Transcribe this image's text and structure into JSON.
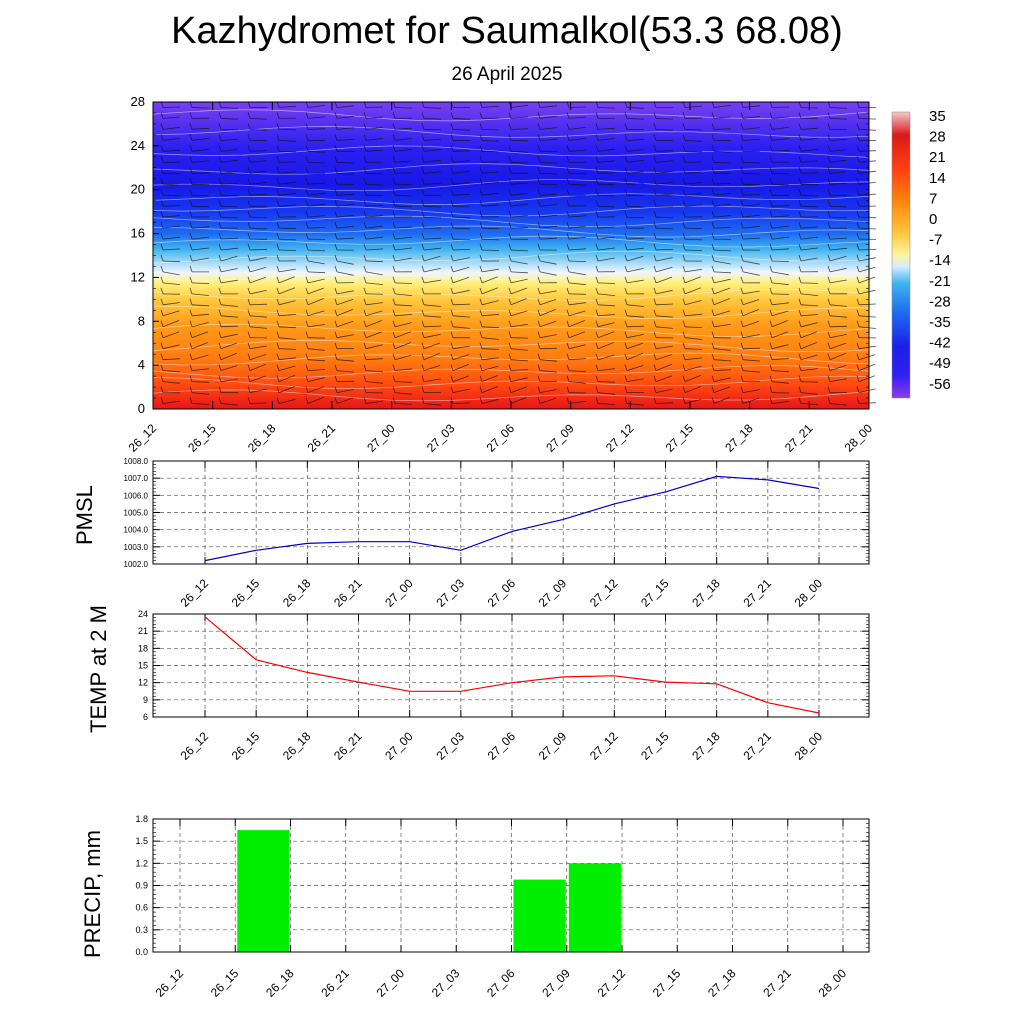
{
  "title": "Kazhydromet for Saumalkol(53.3 68.08)",
  "subtitle": "26 April 2025",
  "time_labels": [
    "26_12",
    "26_15",
    "26_18",
    "26_21",
    "27_00",
    "27_03",
    "27_06",
    "27_09",
    "27_12",
    "27_15",
    "27_18",
    "27_21",
    "28_00"
  ],
  "colors": {
    "pmsl_line": "#0000cc",
    "temp_line": "#ff0000",
    "precip_bar": "#00ee00",
    "grid": "#555555"
  },
  "chart_data": [
    {
      "type": "heatmap",
      "name": "cross-section",
      "x": [
        "26_12",
        "26_15",
        "26_18",
        "26_21",
        "27_00",
        "27_03",
        "27_06",
        "27_09",
        "27_12",
        "27_15",
        "27_18",
        "27_21",
        "28_00"
      ],
      "y_ticks": [
        0,
        4,
        8,
        12,
        16,
        20,
        24,
        28
      ],
      "ylim": [
        0,
        28
      ],
      "colorbar_labels": [
        "35",
        "28",
        "21",
        "14",
        "7",
        "0",
        "-7",
        "-14",
        "-21",
        "-28",
        "-35",
        "-42",
        "-49",
        "-56"
      ],
      "colorbar_range": [
        -63,
        42
      ],
      "temperature_profile": {
        "levels": [
          0,
          4,
          8,
          12,
          16,
          20,
          24,
          28
        ],
        "values": [
          20,
          10,
          0,
          -15,
          -45,
          -58,
          -52,
          -50
        ]
      },
      "wind_barbs": true
    },
    {
      "type": "line",
      "name": "pmsl",
      "ylabel": "PMSL",
      "x": [
        "26_12",
        "26_15",
        "26_18",
        "26_21",
        "27_00",
        "27_03",
        "27_06",
        "27_09",
        "27_12",
        "27_15",
        "27_18",
        "27_21",
        "28_00"
      ],
      "values": [
        1002.2,
        1002.8,
        1003.2,
        1003.3,
        1003.3,
        1002.8,
        1003.9,
        1004.6,
        1005.5,
        1006.2,
        1007.1,
        1006.9,
        1006.4
      ],
      "ylim": [
        1002.0,
        1008.0
      ],
      "y_ticks": [
        "1002.0",
        "1003.0",
        "1004.0",
        "1005.0",
        "1006.0",
        "1007.0",
        "1008.0"
      ],
      "grid": true
    },
    {
      "type": "line",
      "name": "temp",
      "ylabel": "TEMP at 2 M",
      "x": [
        "26_12",
        "26_15",
        "26_18",
        "26_21",
        "27_00",
        "27_03",
        "27_06",
        "27_09",
        "27_12",
        "27_15",
        "27_18",
        "27_21",
        "28_00"
      ],
      "values": [
        23.5,
        16.0,
        13.8,
        12.1,
        10.5,
        10.5,
        12.0,
        13.0,
        13.2,
        12.1,
        11.8,
        8.5,
        6.7
      ],
      "ylim": [
        6,
        24
      ],
      "y_ticks": [
        "6",
        "9",
        "12",
        "15",
        "18",
        "21",
        "24"
      ],
      "grid": true
    },
    {
      "type": "bar",
      "name": "precip",
      "ylabel": "PRECIP, mm",
      "categories": [
        "26_12",
        "26_15",
        "26_18",
        "26_21",
        "27_00",
        "27_03",
        "27_06",
        "27_09",
        "27_12",
        "27_15",
        "27_18",
        "27_21",
        "28_00"
      ],
      "values": [
        0.0,
        1.65,
        0.0,
        0.0,
        0.0,
        0.0,
        0.98,
        1.2,
        0.01,
        0.0,
        0.0,
        0.0,
        0.0
      ],
      "ylim": [
        0,
        1.8
      ],
      "y_ticks": [
        "0.0",
        "0.3",
        "0.6",
        "0.9",
        "1.2",
        "1.5",
        "1.8"
      ],
      "grid": true
    }
  ]
}
